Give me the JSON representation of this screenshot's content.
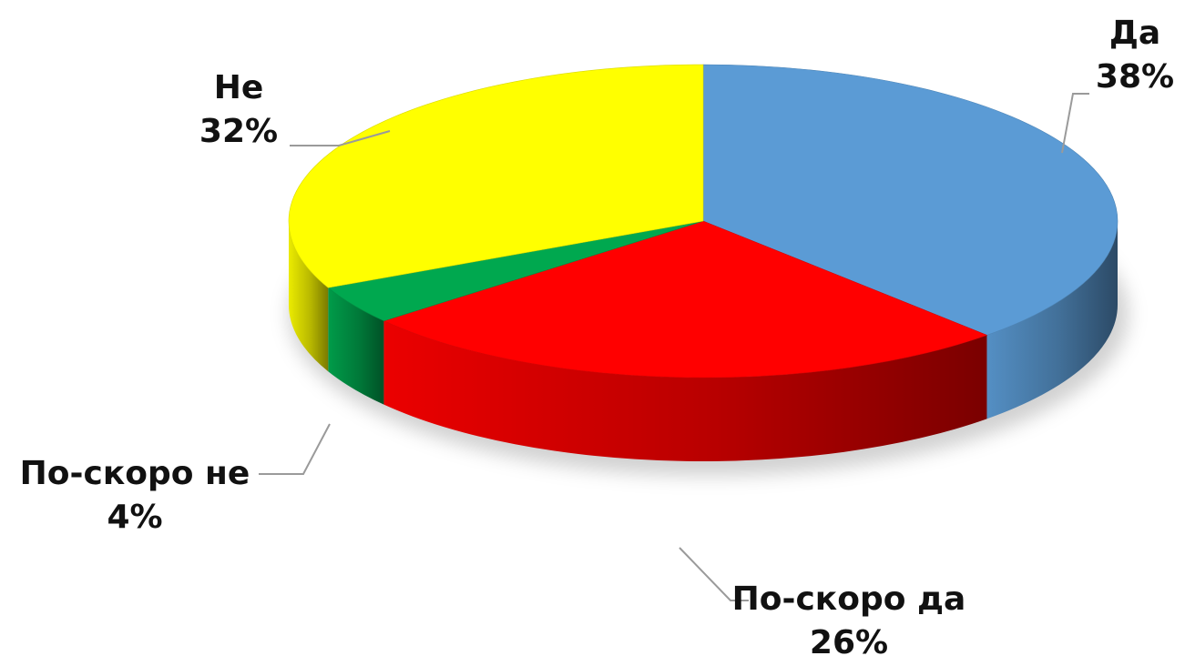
{
  "chart_data": {
    "type": "pie",
    "title": "",
    "style": "3d-tilted",
    "grid": false,
    "legend": "none",
    "slices": [
      {
        "label": "Да",
        "value": 38,
        "value_label": "38%",
        "color": "#5B9BD5"
      },
      {
        "label": "По-скоро да",
        "value": 26,
        "value_label": "26%",
        "color": "#FF0000"
      },
      {
        "label": "По-скоро не",
        "value": 4,
        "value_label": "4%",
        "color": "#00A84F"
      },
      {
        "label": "Не",
        "value": 32,
        "value_label": "32%",
        "color": "#FFFF00"
      }
    ]
  }
}
